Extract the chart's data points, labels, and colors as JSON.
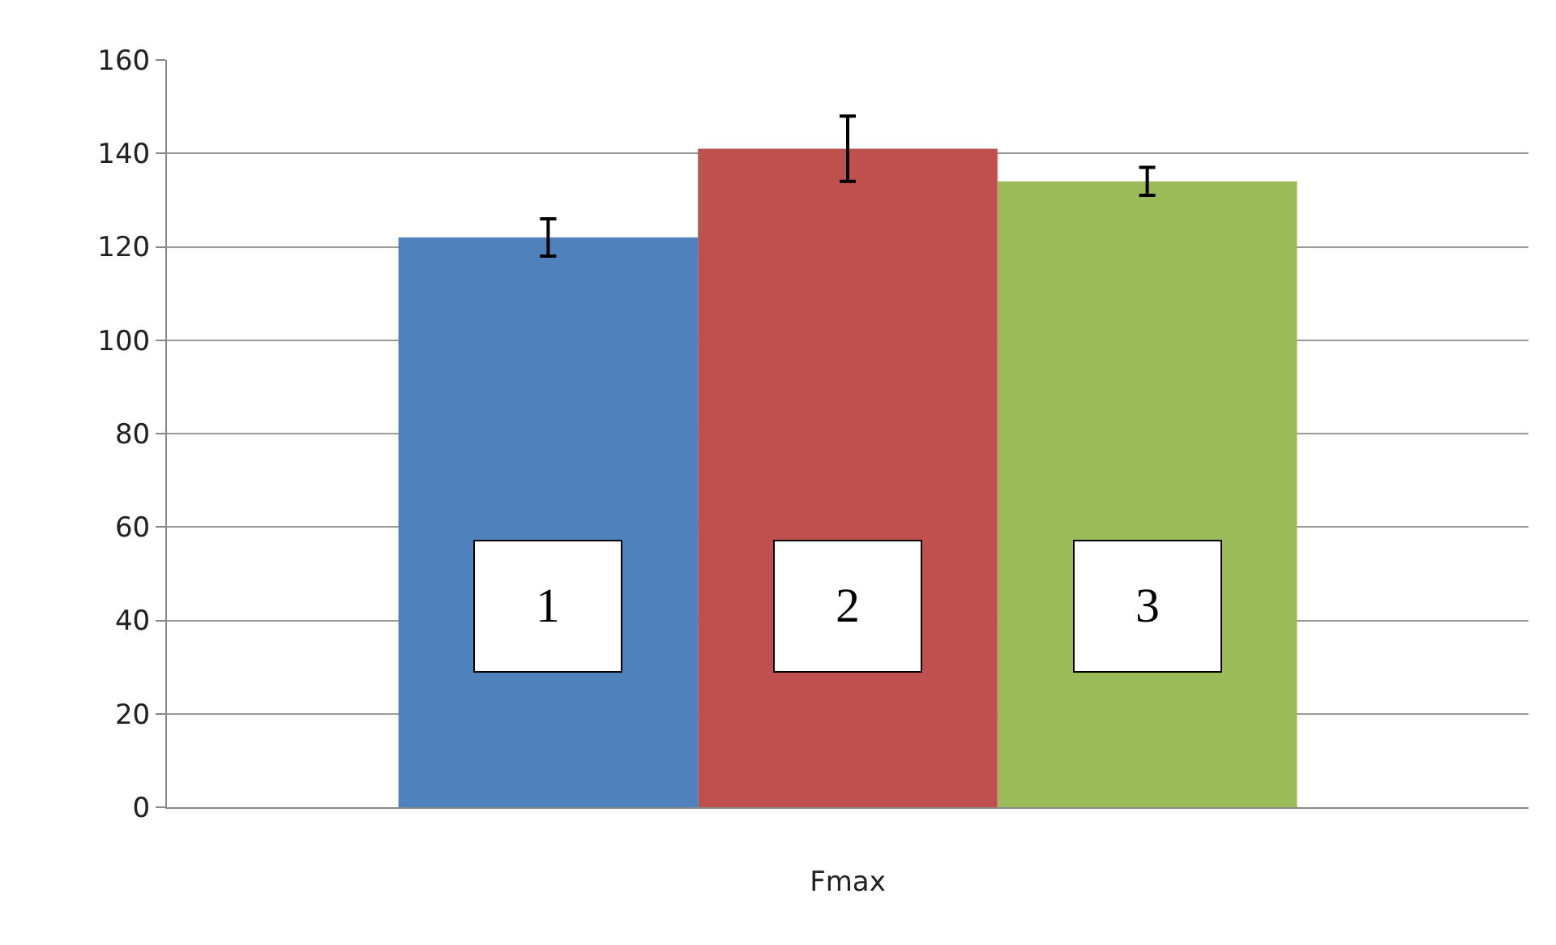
{
  "chart_data": {
    "type": "bar",
    "categories": [
      "Fmax"
    ],
    "series": [
      {
        "name": "1",
        "color": "#4f81bd",
        "values": [
          122
        ],
        "errors": [
          4
        ]
      },
      {
        "name": "2",
        "color": "#c0504d",
        "values": [
          141
        ],
        "errors": [
          7
        ]
      },
      {
        "name": "3",
        "color": "#9bbb59",
        "values": [
          134
        ],
        "errors": [
          3
        ]
      }
    ],
    "ylim": [
      0,
      160
    ],
    "yticks": [
      0,
      20,
      40,
      60,
      80,
      100,
      120,
      140,
      160
    ],
    "grid": "y",
    "legend": false
  }
}
